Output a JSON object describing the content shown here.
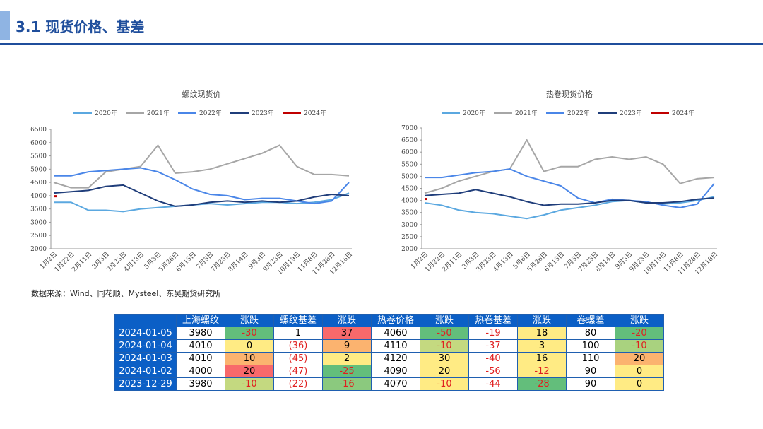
{
  "header": {
    "title": "3.1 现货价格、基差"
  },
  "source": "数据来源：Wind、同花顺、Mysteel、东吴期货研究所",
  "chart_data": [
    {
      "type": "line",
      "title": "螺纹现货价",
      "categories": [
        "1月2日",
        "1月22日",
        "2月11日",
        "3月3日",
        "3月23日",
        "4月13日",
        "5月3日",
        "5月26日",
        "6月15日",
        "7月5日",
        "7月25日",
        "8月14日",
        "9月3日",
        "9月23日",
        "10月19日",
        "11月8日",
        "11月28日",
        "12月18日"
      ],
      "series": [
        {
          "name": "2020年",
          "color": "#5ba8e0",
          "values": [
            3750,
            3750,
            3450,
            3450,
            3400,
            3500,
            3550,
            3600,
            3650,
            3700,
            3650,
            3700,
            3750,
            3750,
            3700,
            3750,
            3850,
            4100
          ]
        },
        {
          "name": "2021年",
          "color": "#a6a6a6",
          "values": [
            4500,
            4300,
            4300,
            4900,
            5000,
            5100,
            5900,
            4850,
            4900,
            5000,
            5200,
            5400,
            5600,
            5900,
            5100,
            4800,
            4800,
            4750
          ]
        },
        {
          "name": "2022年",
          "color": "#4a86e8",
          "values": [
            4750,
            4750,
            4900,
            4950,
            5000,
            5050,
            4900,
            4600,
            4250,
            4050,
            4000,
            3850,
            3900,
            3900,
            3800,
            3700,
            3800,
            4500
          ]
        },
        {
          "name": "2023年",
          "color": "#1f3d7a",
          "values": [
            4100,
            4150,
            4200,
            4350,
            4400,
            4100,
            3800,
            3600,
            3650,
            3750,
            3800,
            3750,
            3800,
            3750,
            3800,
            3950,
            4050,
            4000
          ]
        },
        {
          "name": "2024年",
          "color": "#c00000",
          "values": [
            3980,
            null,
            null,
            null,
            null,
            null,
            null,
            null,
            null,
            null,
            null,
            null,
            null,
            null,
            null,
            null,
            null,
            null
          ]
        }
      ],
      "ylim": [
        2000,
        6500
      ],
      "yticks": [
        2000,
        2500,
        3000,
        3500,
        4000,
        4500,
        5000,
        5500,
        6000,
        6500
      ],
      "legend": "top"
    },
    {
      "type": "line",
      "title": "热卷现货价格",
      "categories": [
        "1月2日",
        "1月22日",
        "2月11日",
        "3月3日",
        "3月23日",
        "4月13日",
        "5月6日",
        "5月26日",
        "6月15日",
        "7月5日",
        "7月25日",
        "8月14日",
        "9月3日",
        "9月23日",
        "10月19日",
        "11月8日",
        "11月28日",
        "12月18日"
      ],
      "series": [
        {
          "name": "2020年",
          "color": "#5ba8e0",
          "values": [
            3900,
            3800,
            3600,
            3500,
            3450,
            3350,
            3250,
            3400,
            3600,
            3700,
            3800,
            3950,
            4000,
            3900,
            3850,
            3900,
            4000,
            4150
          ]
        },
        {
          "name": "2021年",
          "color": "#a6a6a6",
          "values": [
            4300,
            4500,
            4800,
            5000,
            5200,
            5300,
            6500,
            5200,
            5400,
            5400,
            5700,
            5800,
            5700,
            5800,
            5500,
            4700,
            4900,
            4950
          ]
        },
        {
          "name": "2022年",
          "color": "#4a86e8",
          "values": [
            4950,
            4950,
            5050,
            5150,
            5200,
            5300,
            5000,
            4800,
            4600,
            4100,
            3900,
            4050,
            4000,
            3950,
            3800,
            3700,
            3850,
            4700
          ]
        },
        {
          "name": "2023年",
          "color": "#1f3d7a",
          "values": [
            4200,
            4250,
            4300,
            4450,
            4300,
            4150,
            3950,
            3800,
            3850,
            3850,
            3900,
            4000,
            4000,
            3900,
            3900,
            3950,
            4050,
            4100
          ]
        },
        {
          "name": "2024年",
          "color": "#c00000",
          "values": [
            4060,
            null,
            null,
            null,
            null,
            null,
            null,
            null,
            null,
            null,
            null,
            null,
            null,
            null,
            null,
            null,
            null,
            null
          ]
        }
      ],
      "ylim": [
        2000,
        7000
      ],
      "yticks": [
        2000,
        2500,
        3000,
        3500,
        4000,
        4500,
        5000,
        5500,
        6000,
        6500,
        7000
      ],
      "legend": "top"
    }
  ],
  "table": {
    "header": [
      "",
      "上海螺纹",
      "涨跌",
      "螺纹基差",
      "涨跌",
      "热卷价格",
      "涨跌",
      "热卷基差",
      "涨跌",
      "卷螺差",
      "涨跌"
    ],
    "rows": [
      [
        "2024-01-05",
        "3980",
        "-30",
        "1",
        "37",
        "4060",
        "-50",
        "-19",
        "18",
        "80",
        "-20"
      ],
      [
        "2024-01-04",
        "4010",
        "0",
        "(36)",
        "9",
        "4110",
        "-10",
        "-37",
        "3",
        "100",
        "-10"
      ],
      [
        "2024-01-03",
        "4010",
        "10",
        "(45)",
        "2",
        "4120",
        "30",
        "-40",
        "16",
        "110",
        "20"
      ],
      [
        "2024-01-02",
        "4000",
        "20",
        "(47)",
        "-25",
        "4090",
        "20",
        "-56",
        "-12",
        "90",
        "0"
      ],
      [
        "2023-12-29",
        "3980",
        "-10",
        "(22)",
        "-16",
        "4070",
        "-10",
        "-44",
        "-28",
        "90",
        "0"
      ]
    ],
    "cell_colors": [
      [
        "#0b5fc6",
        "#fff",
        "#63be7b",
        "#fff",
        "#f8696b",
        "#fff",
        "#63be7b",
        "#fff",
        "#ffeb84",
        "#fff",
        "#63be7b"
      ],
      [
        "#0b5fc6",
        "#fff",
        "#ffeb84",
        "#fff",
        "#fbb36f",
        "#fff",
        "#c4d980",
        "#fff",
        "#ffeb84",
        "#fff",
        "#a9d27f"
      ],
      [
        "#0b5fc6",
        "#fff",
        "#fbb36f",
        "#fff",
        "#ffeb84",
        "#fff",
        "#ffeb84",
        "#fff",
        "#ffeb84",
        "#fff",
        "#fbb36f"
      ],
      [
        "#0b5fc6",
        "#fff",
        "#f8696b",
        "#fff",
        "#63be7b",
        "#fff",
        "#ffeb84",
        "#fff",
        "#ffeb84",
        "#fff",
        "#ffeb84"
      ],
      [
        "#0b5fc6",
        "#fff",
        "#c4d980",
        "#fff",
        "#8bc97e",
        "#fff",
        "#ffeb84",
        "#fff",
        "#63be7b",
        "#fff",
        "#ffeb84"
      ]
    ]
  }
}
